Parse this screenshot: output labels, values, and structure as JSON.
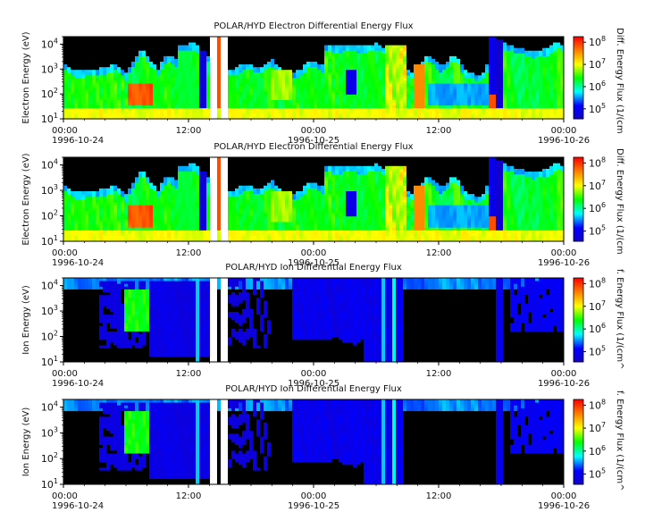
{
  "chart_data": [
    {
      "type": "heatmap",
      "title": "POLAR/HYD  Electron Differential Energy Flux",
      "ylabel": "Electron Energy (eV)",
      "colorbar_label": "Diff. Energy Flux (1/(cm",
      "x_tick_times": [
        "00:00",
        "12:00",
        "00:00",
        "12:00",
        "00:00"
      ],
      "x_tick_dates": [
        "1996-10-24",
        "",
        "1996-10-25",
        "",
        "1996-10-26"
      ],
      "xlim_hours": [
        0,
        48
      ],
      "y_scale": "log",
      "y_ticks": [
        "10^1",
        "10^2",
        "10^3",
        "10^4"
      ],
      "ylim_eV": [
        10,
        20000
      ],
      "colorbar_ticks": [
        "10^5",
        "10^6",
        "10^7",
        "10^8"
      ],
      "colorbar_scale": "log",
      "colormap": [
        "#1400c8",
        "#0000ff",
        "#00ffff",
        "#00ff00",
        "#ffff00",
        "#ff8000",
        "#ff0000"
      ]
    },
    {
      "type": "heatmap",
      "title": "POLAR/HYD  Electron Differential Energy Flux",
      "ylabel": "Electron Energy (eV)",
      "colorbar_label": "Diff. Energy Flux (1/(cm",
      "x_tick_times": [
        "00:00",
        "12:00",
        "00:00",
        "12:00",
        "00:00"
      ],
      "x_tick_dates": [
        "1996-10-24",
        "",
        "1996-10-25",
        "",
        "1996-10-26"
      ],
      "xlim_hours": [
        0,
        48
      ],
      "y_scale": "log",
      "y_ticks": [
        "10^1",
        "10^2",
        "10^3",
        "10^4"
      ],
      "ylim_eV": [
        10,
        20000
      ],
      "colorbar_ticks": [
        "10^5",
        "10^6",
        "10^7",
        "10^8"
      ],
      "colorbar_scale": "log",
      "colormap": [
        "#1400c8",
        "#0000ff",
        "#00ffff",
        "#00ff00",
        "#ffff00",
        "#ff8000",
        "#ff0000"
      ]
    },
    {
      "type": "heatmap",
      "title": "POLAR/HYD  Ion Differential Energy Flux",
      "ylabel": "Ion Energy (eV)",
      "colorbar_label": "f. Energy Flux (1/(cm^",
      "x_tick_times": [
        "00:00",
        "12:00",
        "00:00",
        "12:00",
        "00:00"
      ],
      "x_tick_dates": [
        "1996-10-24",
        "",
        "1996-10-25",
        "",
        "1996-10-26"
      ],
      "xlim_hours": [
        0,
        48
      ],
      "y_scale": "log",
      "y_ticks": [
        "10^1",
        "10^2",
        "10^3",
        "10^4"
      ],
      "ylim_eV": [
        10,
        20000
      ],
      "colorbar_ticks": [
        "10^5",
        "10^6",
        "10^7",
        "10^8"
      ],
      "colorbar_scale": "log",
      "colormap": [
        "#1400c8",
        "#0000ff",
        "#00ffff",
        "#00ff00",
        "#ffff00",
        "#ff8000",
        "#ff0000"
      ]
    },
    {
      "type": "heatmap",
      "title": "POLAR/HYD  Ion Differential Energy Flux",
      "ylabel": "Ion Energy (eV)",
      "colorbar_label": "f. Energy Flux (1/(cm^",
      "x_tick_times": [
        "00:00",
        "12:00",
        "00:00",
        "12:00",
        "00:00"
      ],
      "x_tick_dates": [
        "1996-10-24",
        "",
        "1996-10-25",
        "",
        "1996-10-26"
      ],
      "xlim_hours": [
        0,
        48
      ],
      "y_scale": "log",
      "y_ticks": [
        "10^1",
        "10^2",
        "10^3",
        "10^4"
      ],
      "ylim_eV": [
        10,
        20000
      ],
      "colorbar_ticks": [
        "10^5",
        "10^6",
        "10^7",
        "10^8"
      ],
      "colorbar_scale": "log",
      "colormap": [
        "#1400c8",
        "#0000ff",
        "#00ffff",
        "#00ff00",
        "#ffff00",
        "#ff8000",
        "#ff0000"
      ]
    }
  ]
}
